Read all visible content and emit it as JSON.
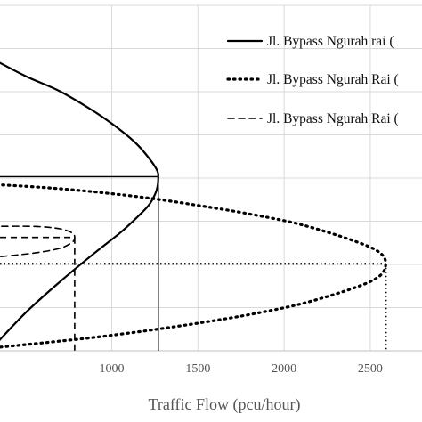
{
  "chart_data": {
    "type": "line",
    "title": "",
    "xlabel": "Traffic Flow (pcu/hour)",
    "ylabel": "",
    "xlim": [
      300,
      2800
    ],
    "ylim": [
      0,
      100
    ],
    "x_ticks": [
      1000,
      1500,
      2000,
      2500
    ],
    "x_tick_labels": [
      "1000",
      "1500",
      "2000",
      "2500"
    ],
    "grid": "on",
    "legend_position": "top-right",
    "series": [
      {
        "name": "Jl. Bypass Ngurah rai (",
        "line_style": "solid",
        "color": "#000000",
        "capacity_x": 1270,
        "optimum_y": 50.4,
        "x": [
          300,
          500,
          700,
          900,
          1050,
          1150,
          1220,
          1260,
          1270,
          1260,
          1220,
          1150,
          1050,
          900,
          700,
          500,
          300
        ],
        "y": [
          84.7,
          79.5,
          75.1,
          69.2,
          63.9,
          59.6,
          55.5,
          52.5,
          50.4,
          46.5,
          42.5,
          38.8,
          34.2,
          28.3,
          20.0,
          11.0,
          0.5
        ]
      },
      {
        "name": "Jl. Bypass Ngurah Rai (",
        "line_style": "dotted",
        "color": "#000000",
        "capacity_x": 2590,
        "optimum_y": 25.2,
        "x": [
          300,
          600,
          900,
          1200,
          1500,
          1800,
          2100,
          2400,
          2550,
          2590,
          2550,
          2400,
          2100,
          1800,
          1500,
          1200,
          900,
          600,
          300
        ],
        "y": [
          48.2,
          47.3,
          46.0,
          44.3,
          42.1,
          39.6,
          36.5,
          31.9,
          28.6,
          25.2,
          21.5,
          18.1,
          13.6,
          10.5,
          8.0,
          5.8,
          3.9,
          2.3,
          0.8
        ]
      },
      {
        "name": "Jl. Bypass Ngurah Rai (",
        "line_style": "dashed",
        "color": "#000000",
        "capacity_x": 785,
        "optimum_y": 32.8,
        "x": [
          300,
          550,
          700,
          770,
          785,
          770,
          700,
          550,
          300
        ],
        "y": [
          36.0,
          36.0,
          35.3,
          34.1,
          32.8,
          31.4,
          29.7,
          28.3,
          27.0
        ]
      }
    ]
  }
}
